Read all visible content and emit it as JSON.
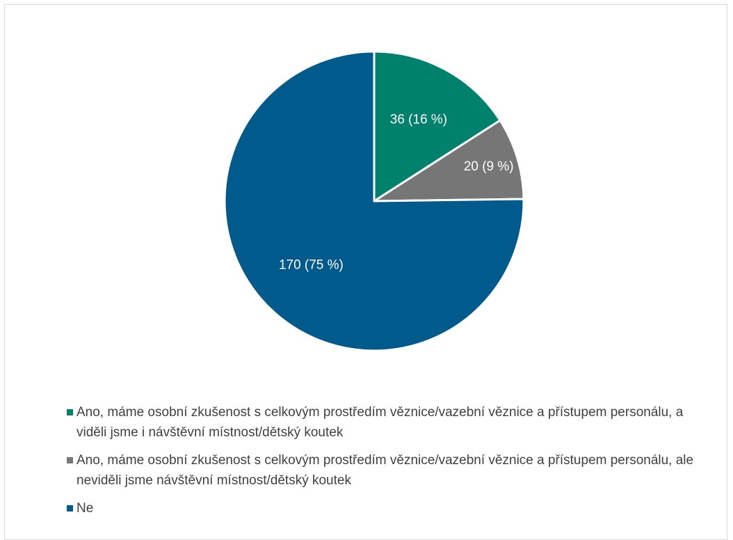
{
  "chart_data": {
    "type": "pie",
    "title": "",
    "slices": [
      {
        "label": "Ano, máme osobní zkušenost s celkovým prostředím věznice/vazební věznice a přístupem personálu, a viděli jsme i návštěvní místnost/dětský koutek",
        "value": 36,
        "display": "36 (16 %)",
        "color": "#00816D"
      },
      {
        "label": "Ano, máme osobní zkušenost s celkovým prostředím věznice/vazební věznice a přístupem personálu, ale neviděli jsme návštěvní místnost/dětský koutek",
        "value": 20,
        "display": "20 (9 %)",
        "color": "#767676"
      },
      {
        "label": "Ne",
        "value": 170,
        "display": "170 (75 %)",
        "color": "#005A8C"
      }
    ],
    "legend_position": "bottom"
  }
}
